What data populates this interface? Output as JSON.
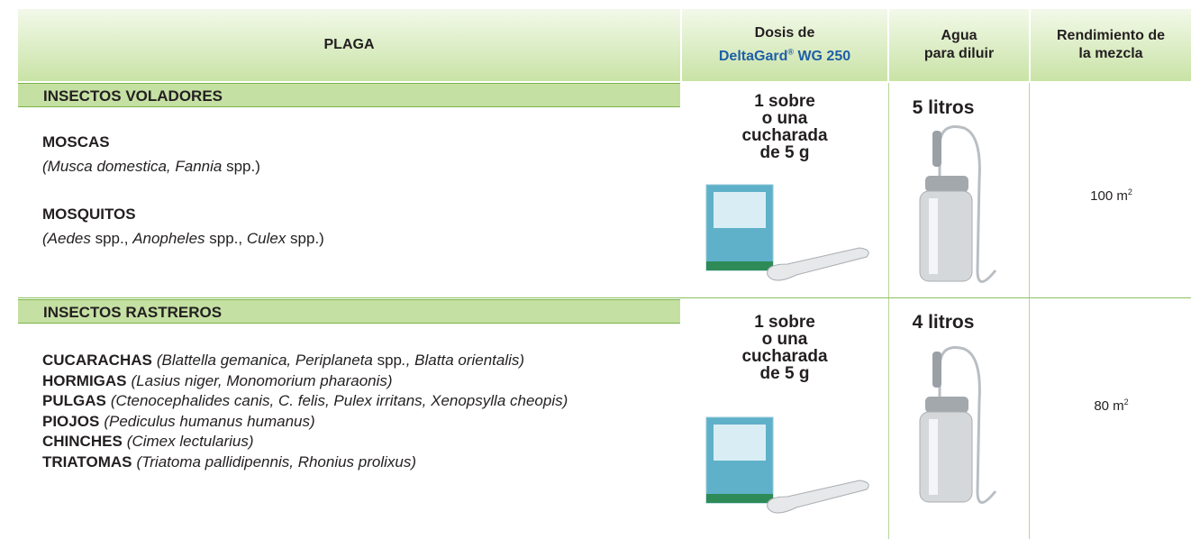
{
  "header": {
    "plaga": "PLAGA",
    "dosis": {
      "line1": "Dosis de",
      "brand": "DeltaGard",
      "reg": "®",
      "product": "WG 250"
    },
    "agua": [
      "Agua",
      "para diluir"
    ],
    "rendimiento": [
      "Rendimiento de",
      "la mezcla"
    ]
  },
  "sections": [
    {
      "title": "INSECTOS VOLADORES",
      "pests": [
        {
          "name": "MOSCAS",
          "runs": [
            {
              "text": "(Musca domestica, Fannia",
              "italic": true
            },
            {
              "text": " spp.)",
              "italic": false
            }
          ]
        },
        {
          "name": "MOSQUITOS",
          "runs": [
            {
              "text": "(Aedes",
              "italic": true
            },
            {
              "text": " spp., ",
              "italic": false
            },
            {
              "text": "Anopheles",
              "italic": true
            },
            {
              "text": " spp., ",
              "italic": false
            },
            {
              "text": "Culex",
              "italic": true
            },
            {
              "text": " spp.)",
              "italic": false
            }
          ]
        }
      ],
      "dose": [
        "1 sobre",
        "o una",
        "cucharada",
        "de 5 g"
      ],
      "water": "5 litros",
      "yield": {
        "value": "100 m",
        "exponent": "2"
      }
    },
    {
      "title": "INSECTOS RASTREROS",
      "pests": [
        {
          "name": "CUCARACHAS",
          "runs": [
            {
              "text": "(Blattella gemanica, Periplaneta",
              "italic": true
            },
            {
              "text": " spp",
              "italic": false
            },
            {
              "text": "., Blatta orientalis)",
              "italic": true
            }
          ]
        },
        {
          "name": "HORMIGAS",
          "runs": [
            {
              "text": "(Lasius niger, Monomorium pharaonis)",
              "italic": true
            }
          ]
        },
        {
          "name": "PULGAS",
          "runs": [
            {
              "text": "(Ctenocephalides canis, C. felis, Pulex irritans, Xenopsylla cheopis)",
              "italic": true
            }
          ]
        },
        {
          "name": "PIOJOS",
          "runs": [
            {
              "text": "(Pediculus humanus humanus)",
              "italic": true
            }
          ]
        },
        {
          "name": "CHINCHES",
          "runs": [
            {
              "text": "(Cimex lectularius)",
              "italic": true
            }
          ]
        },
        {
          "name": "TRIATOMAS",
          "runs": [
            {
              "text": "(Triatoma pallidipennis, Rhonius prolixus)",
              "italic": true
            }
          ]
        }
      ],
      "dose": [
        "1 sobre",
        "o una",
        "cucharada",
        "de 5 g"
      ],
      "water": "4 litros",
      "yield": {
        "value": "80  m",
        "exponent": "2"
      }
    }
  ]
}
